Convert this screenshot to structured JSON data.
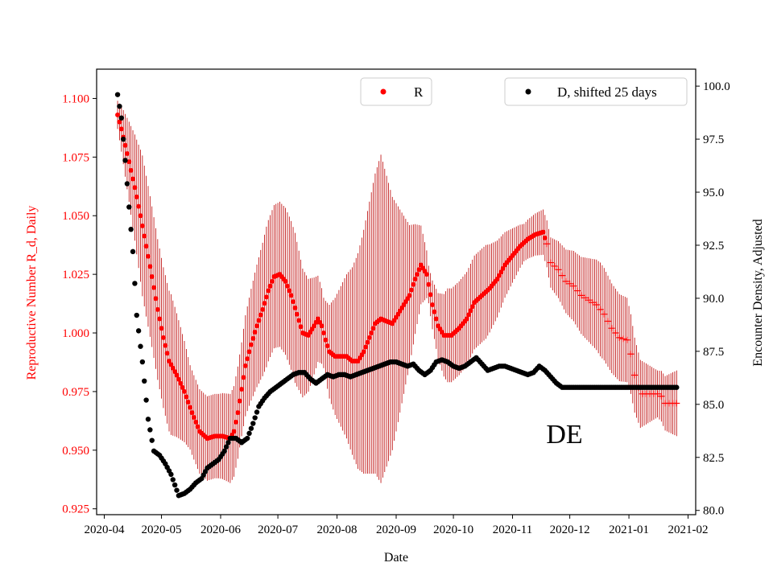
{
  "chart_data": {
    "type": "scatter",
    "title": "",
    "annotation": "DE",
    "xlabel": "Date",
    "ylabel_left": "Reproductive Number R_d, Daily",
    "ylabel_right": "Encounter Density, Adjusted",
    "x_ticks": [
      "2020-04",
      "2020-05",
      "2020-06",
      "2020-07",
      "2020-08",
      "2020-09",
      "2020-10",
      "2020-11",
      "2020-12",
      "2021-01",
      "2021-02"
    ],
    "x_range_days": [
      -4,
      310
    ],
    "ylim_left": [
      0.9225,
      1.1125
    ],
    "ylim_right": [
      79.8,
      100.8
    ],
    "y_ticks_left": [
      "0.925",
      "0.950",
      "0.975",
      "1.000",
      "1.025",
      "1.050",
      "1.075",
      "1.100"
    ],
    "y_ticks_right": [
      "80.0",
      "82.5",
      "85.0",
      "87.5",
      "90.0",
      "92.5",
      "95.0",
      "97.5",
      "100.0"
    ],
    "legend_left": "R",
    "legend_right": "D, shifted 25 days",
    "colors": {
      "R": "#ff0000",
      "errorbar": "#bb0000",
      "D": "#000000",
      "left_axis": "#ff0000",
      "right_axis": "#000000"
    },
    "series_R": {
      "name": "R",
      "axis": "left",
      "points": [
        [
          7,
          1.093
        ],
        [
          9,
          1.087
        ],
        [
          11,
          1.08
        ],
        [
          13,
          1.073
        ],
        [
          16,
          1.062
        ],
        [
          19,
          1.05
        ],
        [
          22,
          1.037
        ],
        [
          25,
          1.024
        ],
        [
          28,
          1.01
        ],
        [
          31,
          0.998
        ],
        [
          34,
          0.988
        ],
        [
          38,
          0.982
        ],
        [
          42,
          0.975
        ],
        [
          46,
          0.966
        ],
        [
          50,
          0.958
        ],
        [
          54,
          0.955
        ],
        [
          58,
          0.956
        ],
        [
          62,
          0.956
        ],
        [
          66,
          0.955
        ],
        [
          68,
          0.958
        ],
        [
          70,
          0.966
        ],
        [
          72,
          0.976
        ],
        [
          74,
          0.986
        ],
        [
          77,
          0.995
        ],
        [
          80,
          1.003
        ],
        [
          83,
          1.01
        ],
        [
          86,
          1.018
        ],
        [
          89,
          1.024
        ],
        [
          92,
          1.025
        ],
        [
          95,
          1.022
        ],
        [
          98,
          1.016
        ],
        [
          101,
          1.008
        ],
        [
          104,
          1.0
        ],
        [
          107,
          0.999
        ],
        [
          110,
          1.003
        ],
        [
          112,
          1.006
        ],
        [
          114,
          1.003
        ],
        [
          116,
          0.997
        ],
        [
          118,
          0.992
        ],
        [
          121,
          0.99
        ],
        [
          124,
          0.99
        ],
        [
          127,
          0.99
        ],
        [
          130,
          0.988
        ],
        [
          133,
          0.988
        ],
        [
          136,
          0.992
        ],
        [
          139,
          0.998
        ],
        [
          142,
          1.004
        ],
        [
          145,
          1.006
        ],
        [
          148,
          1.005
        ],
        [
          151,
          1.004
        ],
        [
          154,
          1.008
        ],
        [
          157,
          1.012
        ],
        [
          160,
          1.016
        ],
        [
          163,
          1.023
        ],
        [
          166,
          1.029
        ],
        [
          169,
          1.025
        ],
        [
          172,
          1.012
        ],
        [
          175,
          1.003
        ],
        [
          178,
          0.999
        ],
        [
          182,
          0.999
        ],
        [
          186,
          1.002
        ],
        [
          190,
          1.006
        ],
        [
          194,
          1.013
        ],
        [
          198,
          1.016
        ],
        [
          202,
          1.019
        ],
        [
          206,
          1.023
        ],
        [
          210,
          1.029
        ],
        [
          214,
          1.033
        ],
        [
          218,
          1.037
        ],
        [
          222,
          1.04
        ],
        [
          226,
          1.042
        ],
        [
          230,
          1.043
        ],
        [
          232,
          1.038
        ],
        [
          234,
          1.03
        ],
        [
          238,
          1.027
        ],
        [
          242,
          1.022
        ],
        [
          246,
          1.02
        ],
        [
          250,
          1.016
        ],
        [
          254,
          1.014
        ],
        [
          258,
          1.012
        ],
        [
          262,
          1.008
        ],
        [
          266,
          1.002
        ],
        [
          270,
          0.998
        ],
        [
          274,
          0.997
        ],
        [
          276,
          0.991
        ],
        [
          278,
          0.982
        ],
        [
          281,
          0.974
        ],
        [
          284,
          0.974
        ],
        [
          287,
          0.974
        ],
        [
          290,
          0.974
        ],
        [
          292,
          0.973
        ],
        [
          294,
          0.97
        ],
        [
          297,
          0.97
        ],
        [
          300,
          0.97
        ]
      ]
    },
    "series_D": {
      "name": "D, shifted 25 days",
      "axis": "right",
      "points": [
        [
          7,
          99.6
        ],
        [
          9,
          98.5
        ],
        [
          11,
          96.5
        ],
        [
          13,
          94.3
        ],
        [
          15,
          92.2
        ],
        [
          17,
          89.2
        ],
        [
          20,
          87.0
        ],
        [
          23,
          84.3
        ],
        [
          26,
          82.8
        ],
        [
          29,
          82.6
        ],
        [
          32,
          82.2
        ],
        [
          35,
          81.7
        ],
        [
          37,
          81.2
        ],
        [
          39,
          80.7
        ],
        [
          42,
          80.8
        ],
        [
          45,
          81.0
        ],
        [
          48,
          81.3
        ],
        [
          51,
          81.5
        ],
        [
          54,
          82.0
        ],
        [
          57,
          82.2
        ],
        [
          60,
          82.4
        ],
        [
          63,
          82.8
        ],
        [
          66,
          83.4
        ],
        [
          69,
          83.4
        ],
        [
          72,
          83.2
        ],
        [
          75,
          83.4
        ],
        [
          78,
          84.1
        ],
        [
          81,
          84.9
        ],
        [
          84,
          85.3
        ],
        [
          87,
          85.6
        ],
        [
          90,
          85.8
        ],
        [
          93,
          86.0
        ],
        [
          96,
          86.2
        ],
        [
          99,
          86.4
        ],
        [
          102,
          86.5
        ],
        [
          105,
          86.5
        ],
        [
          108,
          86.2
        ],
        [
          111,
          86.0
        ],
        [
          114,
          86.2
        ],
        [
          117,
          86.4
        ],
        [
          120,
          86.3
        ],
        [
          123,
          86.4
        ],
        [
          126,
          86.4
        ],
        [
          129,
          86.3
        ],
        [
          132,
          86.4
        ],
        [
          135,
          86.5
        ],
        [
          138,
          86.6
        ],
        [
          141,
          86.7
        ],
        [
          144,
          86.8
        ],
        [
          147,
          86.9
        ],
        [
          150,
          87.0
        ],
        [
          153,
          87.0
        ],
        [
          156,
          86.9
        ],
        [
          159,
          86.8
        ],
        [
          162,
          86.9
        ],
        [
          165,
          86.6
        ],
        [
          168,
          86.4
        ],
        [
          171,
          86.6
        ],
        [
          174,
          87.0
        ],
        [
          177,
          87.1
        ],
        [
          180,
          87.0
        ],
        [
          183,
          86.8
        ],
        [
          186,
          86.7
        ],
        [
          189,
          86.8
        ],
        [
          192,
          87.0
        ],
        [
          195,
          87.2
        ],
        [
          198,
          86.9
        ],
        [
          201,
          86.6
        ],
        [
          204,
          86.7
        ],
        [
          207,
          86.8
        ],
        [
          210,
          86.8
        ],
        [
          213,
          86.7
        ],
        [
          216,
          86.6
        ],
        [
          219,
          86.5
        ],
        [
          222,
          86.4
        ],
        [
          225,
          86.5
        ],
        [
          228,
          86.8
        ],
        [
          231,
          86.6
        ],
        [
          234,
          86.3
        ],
        [
          237,
          86.0
        ],
        [
          240,
          85.8
        ],
        [
          245,
          85.8
        ],
        [
          250,
          85.8
        ],
        [
          255,
          85.8
        ],
        [
          260,
          85.8
        ],
        [
          265,
          85.8
        ],
        [
          270,
          85.8
        ],
        [
          275,
          85.8
        ],
        [
          280,
          85.8
        ],
        [
          285,
          85.8
        ],
        [
          290,
          85.8
        ],
        [
          295,
          85.8
        ],
        [
          300,
          85.8
        ]
      ]
    },
    "error_band": {
      "unit": "R",
      "half_width_points": [
        [
          7,
          0.006
        ],
        [
          20,
          0.03
        ],
        [
          35,
          0.03
        ],
        [
          45,
          0.018
        ],
        [
          60,
          0.018
        ],
        [
          72,
          0.02
        ],
        [
          85,
          0.03
        ],
        [
          100,
          0.032
        ],
        [
          115,
          0.015
        ],
        [
          130,
          0.04
        ],
        [
          145,
          0.07
        ],
        [
          160,
          0.03
        ],
        [
          170,
          0.008
        ],
        [
          180,
          0.02
        ],
        [
          200,
          0.02
        ],
        [
          220,
          0.008
        ],
        [
          232,
          0.01
        ],
        [
          260,
          0.02
        ],
        [
          274,
          0.018
        ],
        [
          290,
          0.01
        ],
        [
          300,
          0.014
        ]
      ]
    }
  }
}
